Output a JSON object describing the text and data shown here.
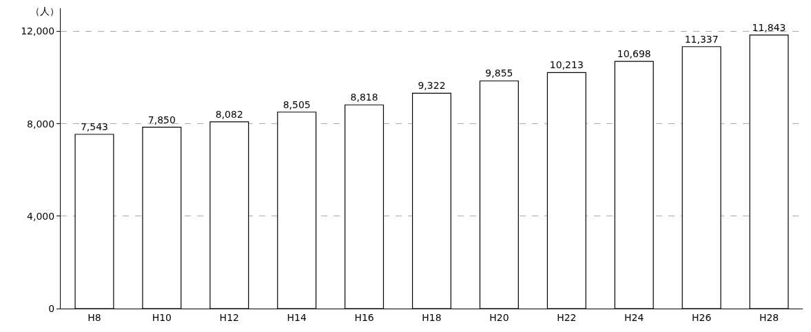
{
  "chart_data": {
    "type": "bar",
    "ylabel": "（人）",
    "categories": [
      "H8",
      "H10",
      "H12",
      "H14",
      "H16",
      "H18",
      "H20",
      "H22",
      "H24",
      "H26",
      "H28"
    ],
    "values": [
      7543,
      7850,
      8082,
      8505,
      8818,
      9322,
      9855,
      10213,
      10698,
      11337,
      11843
    ],
    "value_labels": [
      "7,543",
      "7,850",
      "8,082",
      "8,505",
      "8,818",
      "9,322",
      "9,855",
      "10,213",
      "10,698",
      "11,337",
      "11,843"
    ],
    "color": "#ffffff",
    "ylim": [
      0,
      13000
    ],
    "yticks": [
      {
        "value": 0,
        "label": "0"
      },
      {
        "value": 4000,
        "label": "4,000"
      },
      {
        "value": 8000,
        "label": "8,000"
      },
      {
        "value": 12000,
        "label": "12,000"
      }
    ],
    "grid": "y"
  }
}
